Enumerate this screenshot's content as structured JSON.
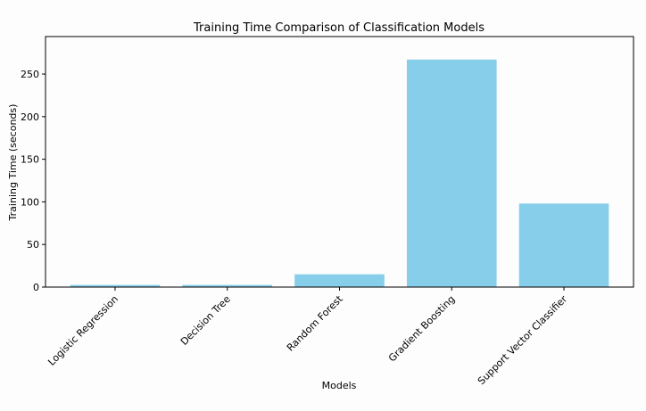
{
  "chart_data": {
    "type": "bar",
    "title": "Training Time Comparison of Classification Models",
    "xlabel": "Models",
    "ylabel": "Training Time (seconds)",
    "categories": [
      "Logistic Regression",
      "Decision Tree",
      "Random Forest",
      "Gradient Boosting",
      "Support Vector Classifier"
    ],
    "values": [
      2.5,
      2.5,
      15,
      267,
      98
    ],
    "ylim": [
      0,
      294
    ],
    "yticks": [
      0,
      50,
      100,
      150,
      200,
      250
    ],
    "ytick_labels": [
      "0",
      "50",
      "100",
      "150",
      "200",
      "250"
    ],
    "grid": false,
    "bar_color": "#87ceeb"
  }
}
